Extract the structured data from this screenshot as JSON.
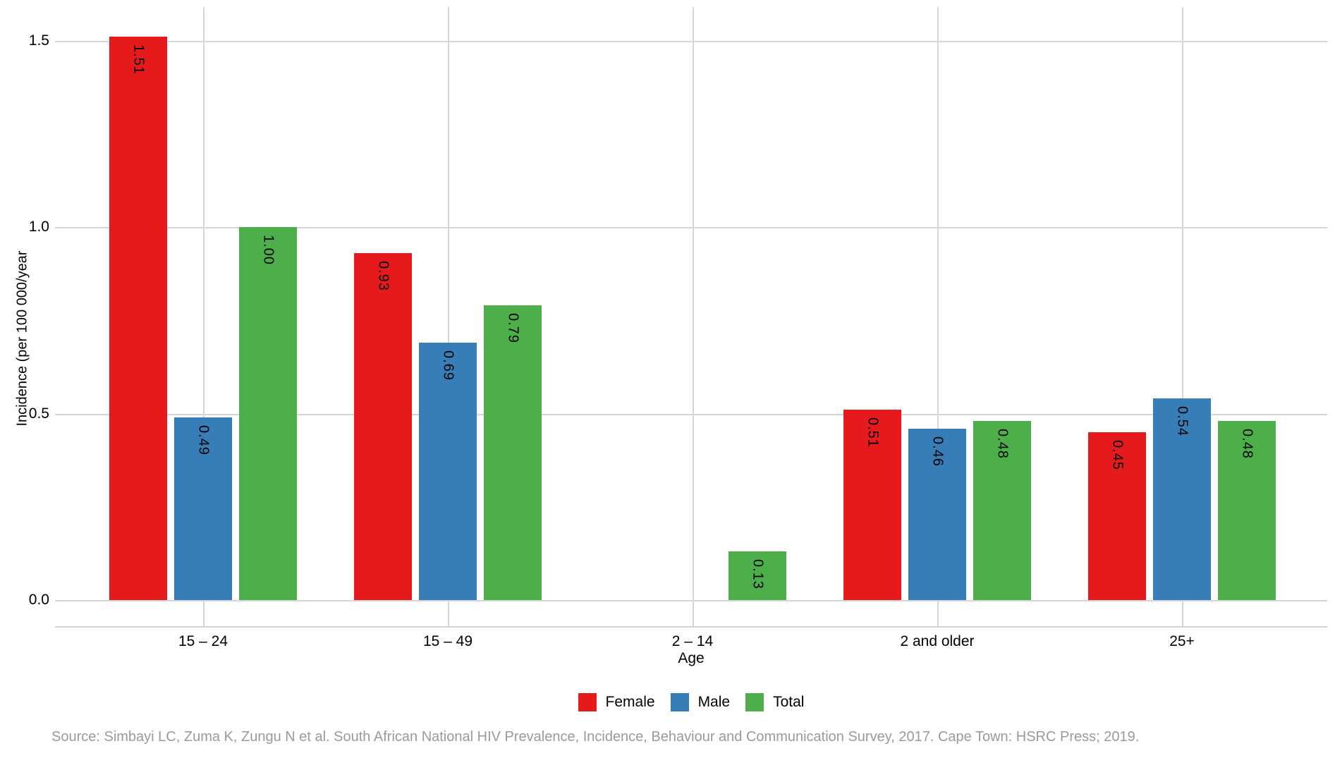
{
  "chart_data": {
    "type": "bar",
    "categories": [
      "15 – 24",
      "15 – 49",
      "2 – 14",
      "2 and older",
      "25+"
    ],
    "series": [
      {
        "name": "Female",
        "color": "#E41A1C",
        "values": [
          1.51,
          0.93,
          null,
          0.51,
          0.45
        ]
      },
      {
        "name": "Male",
        "color": "#377EB8",
        "values": [
          0.49,
          0.69,
          null,
          0.46,
          0.54
        ]
      },
      {
        "name": "Total",
        "color": "#4DAF4A",
        "values": [
          1.0,
          0.79,
          0.13,
          0.48,
          0.48
        ]
      }
    ],
    "bar_value_labels": true,
    "bar_label_rotation_deg": 90,
    "xlabel": "Age",
    "ylabel": "Incidence (per 100 000/year",
    "yticks": [
      {
        "value": 0.0,
        "label": "0.0"
      },
      {
        "value": 0.5,
        "label": "0.5"
      },
      {
        "value": 1.0,
        "label": "1.0"
      },
      {
        "value": 1.5,
        "label": "1.5"
      }
    ],
    "ylim": [
      0,
      1.6
    ],
    "grid": "both",
    "legend_position": "bottom"
  },
  "legend": {
    "items": [
      {
        "label": "Female",
        "color": "#E41A1C"
      },
      {
        "label": "Male",
        "color": "#377EB8"
      },
      {
        "label": "Total",
        "color": "#4DAF4A"
      }
    ]
  },
  "source": {
    "text": "Source: Simbayi LC, Zuma K, Zungu N et al. South African National HIV Prevalence, Incidence, Behaviour and Communication Survey, 2017. Cape Town: HSRC Press; 2019."
  },
  "colors": {
    "gridline": "#D6D6D6",
    "axis_line": "#CFCFCF",
    "background": "#FFFFFF",
    "bar_label_text": "#000000",
    "source_text": "#9A9A9A"
  }
}
